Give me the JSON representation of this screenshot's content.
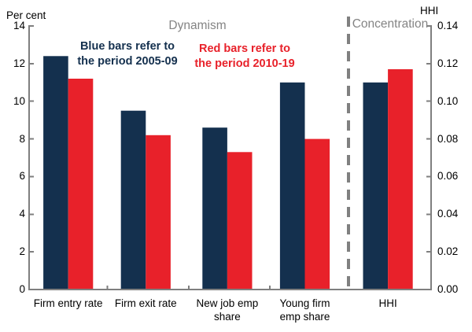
{
  "chart_data": {
    "type": "bar",
    "title": "",
    "categories": [
      "Firm entry rate",
      "Firm exit rate",
      "New job emp share",
      "Young firm emp share",
      "HHI"
    ],
    "category_display": [
      "Firm entry rate",
      "Firm exit rate",
      "New job emp\nshare",
      "Young firm\nemp share",
      "HHI"
    ],
    "category_axis": [
      "left",
      "left",
      "left",
      "left",
      "right"
    ],
    "series": [
      {
        "name": "2005-09",
        "color": "#14304e",
        "values": [
          12.4,
          9.5,
          8.6,
          11.0,
          0.11
        ]
      },
      {
        "name": "2010-19",
        "color": "#e8212a",
        "values": [
          11.2,
          8.2,
          7.3,
          8.0,
          0.117
        ]
      }
    ],
    "left_axis": {
      "label": "Per cent",
      "range": [
        0,
        14
      ],
      "tick_values": [
        0,
        2,
        4,
        6,
        8,
        10,
        12,
        14
      ],
      "tick_labels": [
        "0",
        "2",
        "4",
        "6",
        "8",
        "10",
        "12",
        "14"
      ]
    },
    "right_axis": {
      "label": "HHI",
      "range": [
        0,
        0.14
      ],
      "tick_values": [
        0,
        0.02,
        0.04,
        0.06,
        0.08,
        0.1,
        0.12,
        0.14
      ],
      "tick_labels": [
        "0.00",
        "0.02",
        "0.04",
        "0.06",
        "0.08",
        "0.10",
        "0.12",
        "0.14"
      ]
    },
    "sections": [
      {
        "label": "Dynamism",
        "category_span": [
          0,
          3
        ]
      },
      {
        "label": "Concentration",
        "category_span": [
          4,
          4
        ]
      }
    ],
    "grid": false,
    "legend_position": "in-plot text notes"
  },
  "annotations": {
    "blue_note": "Blue bars refer to\nthe period 2005-09",
    "red_note": "Red bars refer to\nthe period 2010-19"
  },
  "colors": {
    "blue_series": "#14304e",
    "red_series": "#e8212a",
    "section_text": "#848484",
    "axis_line": "#7f7f7f",
    "separator": "#808080",
    "tick_text": "#000000"
  }
}
